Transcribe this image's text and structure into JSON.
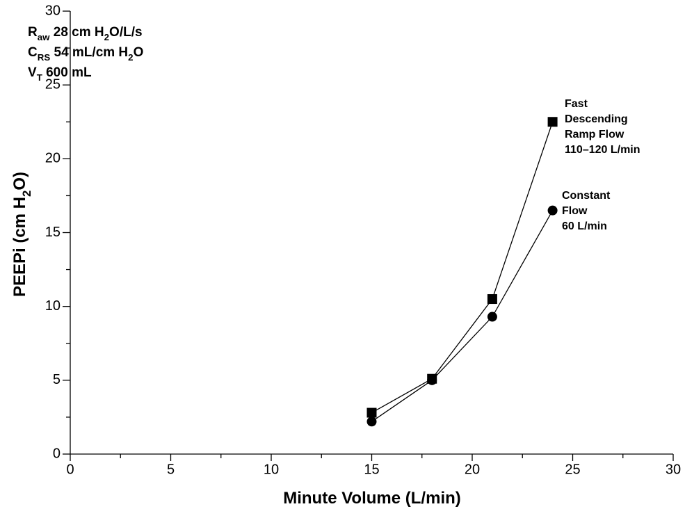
{
  "chart_data": {
    "type": "line",
    "x_label": [
      "Minute Volume (L/min)"
    ],
    "y_label": [
      "PEEPi (cm H",
      "2",
      "O)"
    ],
    "annotations": [
      [
        "R",
        "aw",
        " 28 cm H",
        "2",
        "O/L/s"
      ],
      [
        "C",
        "RS",
        " 54 mL/cm H",
        "2",
        "O"
      ],
      [
        "V",
        "T",
        " 600 mL"
      ]
    ],
    "x": [
      15,
      18,
      21,
      24
    ],
    "series": [
      {
        "name": [
          "Fast",
          "Descending",
          "Ramp Flow",
          "110–120 L/min"
        ],
        "marker": "square",
        "color": "#000000",
        "values": [
          2.8,
          5.1,
          10.5,
          22.5
        ]
      },
      {
        "name": [
          "Constant",
          "Flow",
          "60 L/min"
        ],
        "marker": "circle",
        "color": "#000000",
        "values": [
          2.2,
          5.0,
          9.3,
          16.5
        ]
      }
    ],
    "xlim": [
      0,
      30
    ],
    "xticks": [
      0,
      5,
      10,
      15,
      20,
      25,
      30
    ],
    "xminorticks": [
      2.5,
      7.5,
      12.5,
      17.5,
      22.5,
      27.5
    ],
    "ylim": [
      0,
      30
    ],
    "yticks": [
      0,
      5,
      10,
      15,
      20,
      25,
      30
    ],
    "yminorticks": [
      2.5,
      7.5,
      12.5,
      17.5,
      22.5,
      27.5
    ],
    "grid": false
  }
}
